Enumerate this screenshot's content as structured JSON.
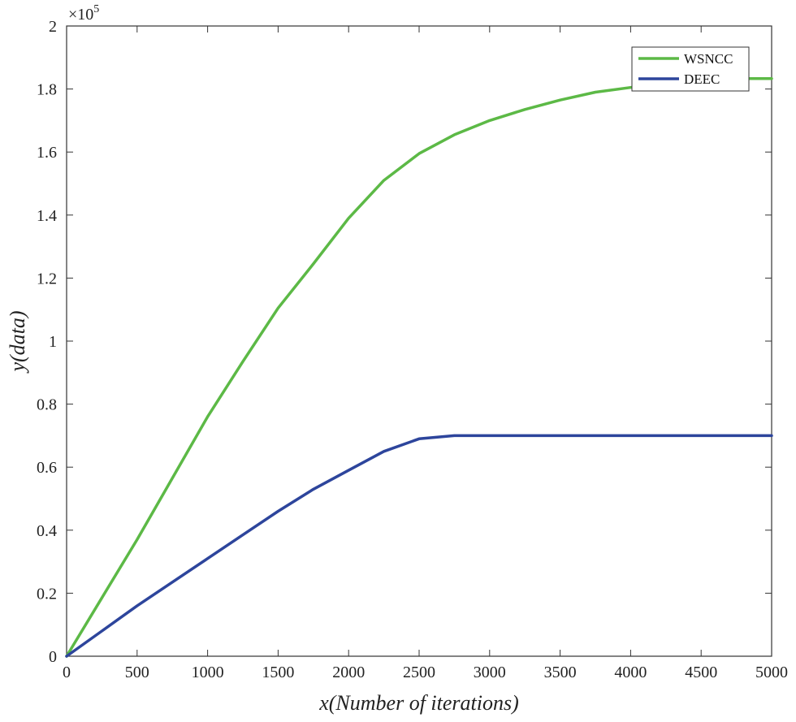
{
  "chart_data": {
    "type": "line",
    "xlabel": "x(Number of iterations)",
    "ylabel": "y(data)",
    "y_multiplier_base": "×10",
    "y_multiplier_exponent": "5",
    "xlim": [
      0,
      5000
    ],
    "ylim": [
      0,
      2
    ],
    "x_ticks": [
      0,
      500,
      1000,
      1500,
      2000,
      2500,
      3000,
      3500,
      4000,
      4500,
      5000
    ],
    "y_ticks": [
      0,
      0.2,
      0.4,
      0.6,
      0.8,
      1,
      1.2,
      1.4,
      1.6,
      1.8,
      2
    ],
    "x_tick_labels": [
      "0",
      "500",
      "1000",
      "1500",
      "2000",
      "2500",
      "3000",
      "3500",
      "4000",
      "4500",
      "5000"
    ],
    "y_tick_labels": [
      "0",
      "0.2",
      "0.4",
      "0.6",
      "0.8",
      "1",
      "1.2",
      "1.4",
      "1.6",
      "1.8",
      "2"
    ],
    "grid": false,
    "legend_position": "top-right",
    "series": [
      {
        "name": "WSNCC",
        "color": "#5cb946",
        "x": [
          0,
          250,
          500,
          750,
          1000,
          1250,
          1500,
          1750,
          2000,
          2250,
          2500,
          2750,
          3000,
          3250,
          3500,
          3750,
          4000,
          4250,
          4500,
          4750,
          5000
        ],
        "y": [
          0,
          0.185,
          0.37,
          0.565,
          0.76,
          0.935,
          1.105,
          1.245,
          1.39,
          1.51,
          1.595,
          1.655,
          1.7,
          1.735,
          1.765,
          1.79,
          1.805,
          1.82,
          1.83,
          1.833,
          1.833
        ]
      },
      {
        "name": "DEEC",
        "color": "#2d459c",
        "x": [
          0,
          250,
          500,
          750,
          1000,
          1250,
          1500,
          1750,
          2000,
          2250,
          2500,
          2750,
          3000,
          3500,
          4000,
          4500,
          5000
        ],
        "y": [
          0,
          0.08,
          0.16,
          0.235,
          0.31,
          0.385,
          0.46,
          0.53,
          0.59,
          0.65,
          0.69,
          0.7,
          0.7,
          0.7,
          0.7,
          0.7,
          0.7
        ]
      }
    ]
  }
}
